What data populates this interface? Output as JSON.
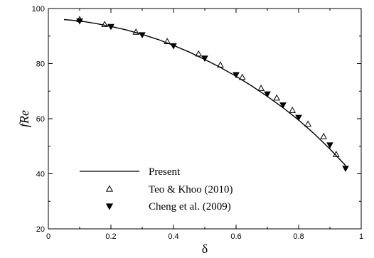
{
  "chart_data": {
    "type": "line",
    "xlabel": "δ",
    "ylabel": "fRe",
    "xlim": [
      0,
      1
    ],
    "ylim": [
      20,
      100
    ],
    "x_ticks": [
      "0",
      "0.2",
      "0.4",
      "0.6",
      "0.8",
      "1"
    ],
    "y_ticks": [
      "20",
      "40",
      "60",
      "80",
      "100"
    ],
    "grid": false,
    "legend_position": "bottom-left",
    "series": [
      {
        "name": "Present",
        "marker": "line",
        "x": [
          0.05,
          0.1,
          0.15,
          0.2,
          0.25,
          0.3,
          0.35,
          0.4,
          0.45,
          0.5,
          0.55,
          0.6,
          0.65,
          0.7,
          0.75,
          0.8,
          0.85,
          0.9,
          0.95
        ],
        "y": [
          96.0,
          95.5,
          94.6,
          93.5,
          92.2,
          90.6,
          88.8,
          86.6,
          84.2,
          81.5,
          78.6,
          75.4,
          71.9,
          68.1,
          64.0,
          59.5,
          54.5,
          49.0,
          43.0
        ]
      },
      {
        "name": "Teo & Khoo (2010)",
        "marker": "open-triangle-up",
        "x": [
          0.1,
          0.18,
          0.28,
          0.38,
          0.48,
          0.55,
          0.62,
          0.68,
          0.73,
          0.78,
          0.83,
          0.88,
          0.92
        ],
        "y": [
          96.0,
          94.2,
          91.4,
          88.0,
          83.5,
          79.5,
          75.0,
          71.0,
          67.5,
          63.0,
          58.0,
          53.5,
          47.0
        ]
      },
      {
        "name": "Cheng et al. (2009)",
        "marker": "filled-triangle-down",
        "x": [
          0.1,
          0.2,
          0.3,
          0.4,
          0.5,
          0.6,
          0.7,
          0.75,
          0.8,
          0.9,
          0.95
        ],
        "y": [
          95.5,
          93.5,
          90.5,
          86.5,
          82.0,
          76.0,
          69.0,
          65.0,
          60.5,
          50.5,
          42.0
        ]
      }
    ]
  }
}
